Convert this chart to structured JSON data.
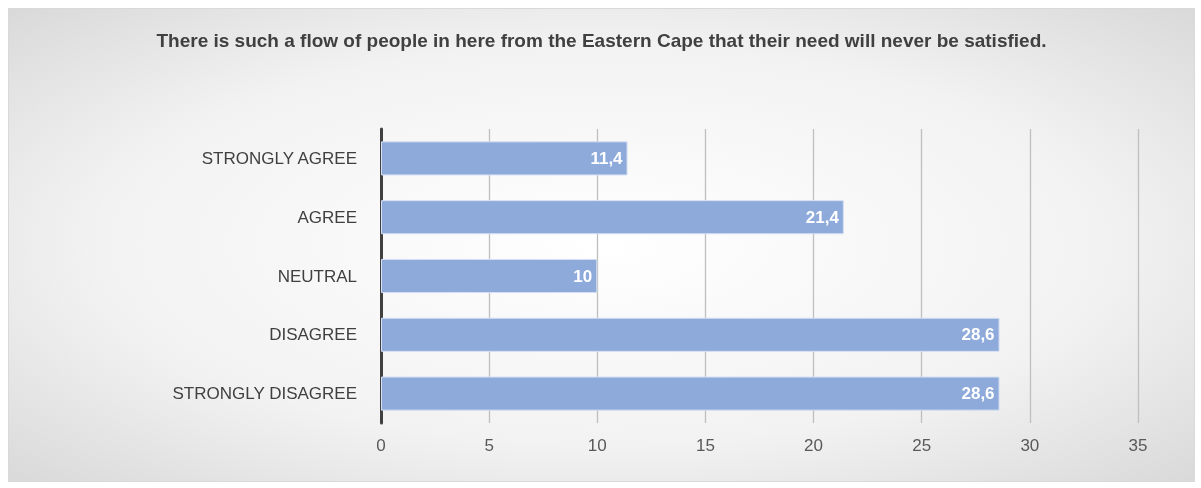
{
  "chart_data": {
    "type": "bar",
    "orientation": "horizontal",
    "title": "There is such a flow of people in here from the Eastern Cape that their need will never be satisfied.",
    "categories": [
      "STRONGLY AGREE",
      "AGREE",
      "NEUTRAL",
      "DISAGREE",
      "STRONGLY DISAGREE"
    ],
    "values": [
      11.4,
      21.4,
      10,
      28.6,
      28.6
    ],
    "value_labels": [
      "11,4",
      "21,4",
      "10",
      "28,6",
      "28,6"
    ],
    "color": "#8eaadb",
    "xlim": [
      0,
      35
    ],
    "xticks": [
      0,
      5,
      10,
      15,
      20,
      25,
      30,
      35
    ],
    "grid": "x"
  }
}
